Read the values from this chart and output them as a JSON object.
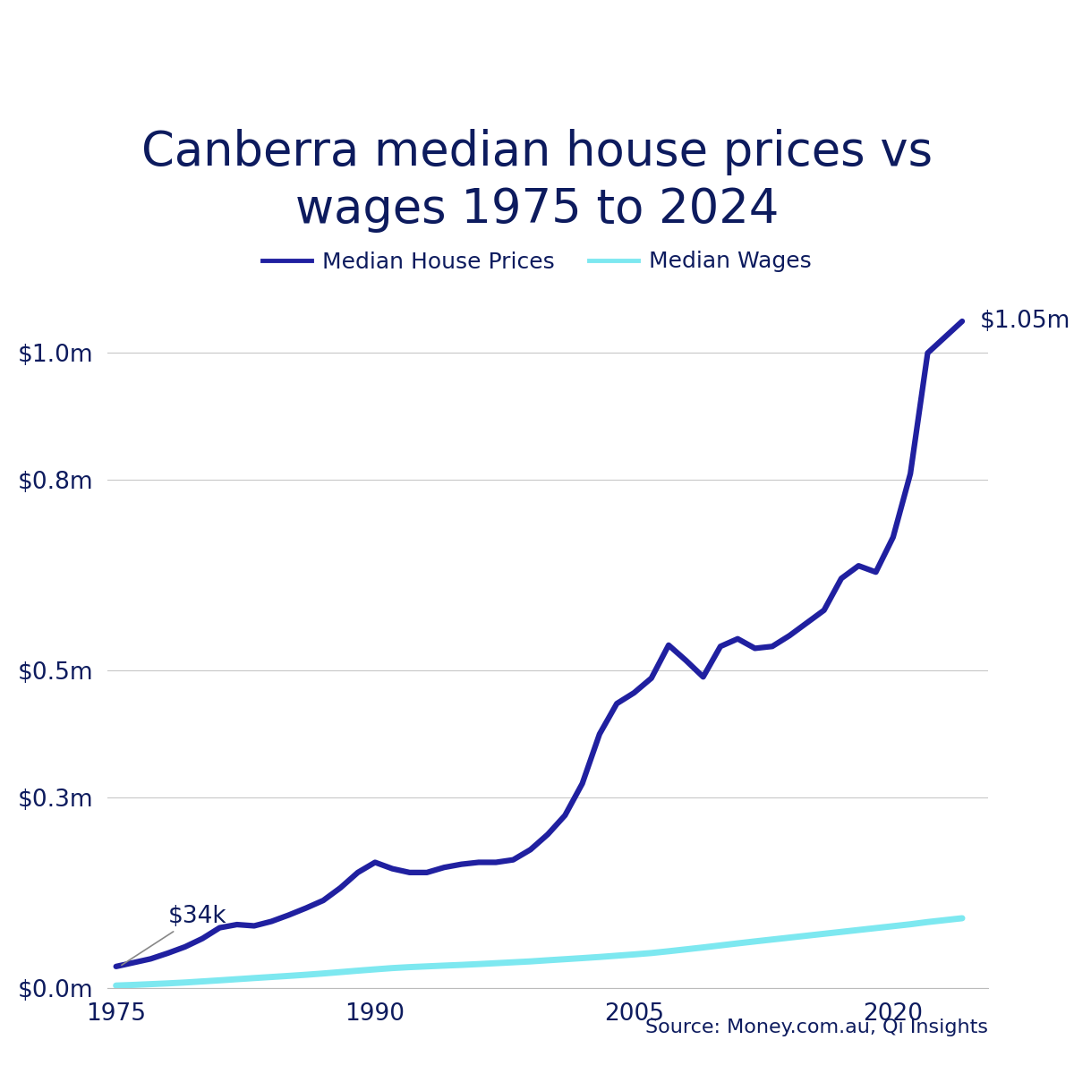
{
  "title": "Canberra median house prices vs\nwages 1975 to 2024",
  "title_color": "#0d1b5e",
  "background_color": "#ffffff",
  "legend_labels": [
    "Median House Prices",
    "Median Wages"
  ],
  "house_color": "#2020a0",
  "wages_color": "#7de8f0",
  "annotation_start": "$34k",
  "annotation_end": "$1.05m",
  "source_text": "Source: Money.com.au, Qi Insights",
  "ytick_labels": [
    "$0.0m",
    "$0.3m",
    "$0.5m",
    "$0.8m",
    "$1.0m"
  ],
  "ytick_values": [
    0,
    300000,
    500000,
    800000,
    1000000
  ],
  "xtick_values": [
    1975,
    1990,
    2005,
    2020
  ],
  "house_prices": {
    "years": [
      1975,
      1976,
      1977,
      1978,
      1979,
      1980,
      1981,
      1982,
      1983,
      1984,
      1985,
      1986,
      1987,
      1988,
      1989,
      1990,
      1991,
      1992,
      1993,
      1994,
      1995,
      1996,
      1997,
      1998,
      1999,
      2000,
      2001,
      2002,
      2003,
      2004,
      2005,
      2006,
      2007,
      2008,
      2009,
      2010,
      2011,
      2012,
      2013,
      2014,
      2015,
      2016,
      2017,
      2018,
      2019,
      2020,
      2021,
      2022,
      2023,
      2024
    ],
    "values": [
      34000,
      40000,
      46000,
      55000,
      65000,
      78000,
      95000,
      100000,
      98000,
      105000,
      115000,
      126000,
      138000,
      158000,
      182000,
      198000,
      188000,
      182000,
      182000,
      190000,
      195000,
      198000,
      198000,
      202000,
      218000,
      242000,
      272000,
      322000,
      400000,
      448000,
      465000,
      488000,
      540000,
      516000,
      490000,
      538000,
      550000,
      535000,
      538000,
      555000,
      575000,
      595000,
      645000,
      665000,
      655000,
      710000,
      810000,
      1000000,
      1025000,
      1050000
    ]
  },
  "wages": {
    "years": [
      1975,
      1976,
      1977,
      1978,
      1979,
      1980,
      1981,
      1982,
      1983,
      1984,
      1985,
      1986,
      1987,
      1988,
      1989,
      1990,
      1991,
      1992,
      1993,
      1994,
      1995,
      1996,
      1997,
      1998,
      1999,
      2000,
      2001,
      2002,
      2003,
      2004,
      2005,
      2006,
      2007,
      2008,
      2009,
      2010,
      2011,
      2012,
      2013,
      2014,
      2015,
      2016,
      2017,
      2018,
      2019,
      2020,
      2021,
      2022,
      2023,
      2024
    ],
    "values": [
      4000,
      5000,
      6200,
      7400,
      8800,
      10500,
      12200,
      14000,
      15800,
      17500,
      19200,
      21000,
      23000,
      25200,
      27400,
      29500,
      31500,
      33000,
      34200,
      35400,
      36500,
      37800,
      39200,
      40600,
      42000,
      43800,
      45500,
      47200,
      49000,
      51000,
      53000,
      55200,
      58000,
      61000,
      64000,
      67200,
      70400,
      73500,
      76500,
      79500,
      82500,
      85500,
      88500,
      91500,
      94500,
      97500,
      100500,
      104000,
      107000,
      110000
    ]
  },
  "ylim": [
    0,
    1150000
  ],
  "xlim": [
    1974.5,
    2025.5
  ]
}
